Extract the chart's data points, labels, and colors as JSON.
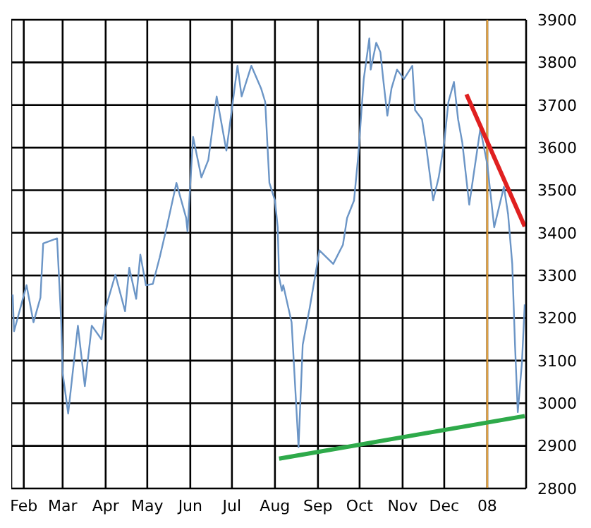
{
  "chart_data": {
    "type": "line",
    "grid": true,
    "legend": false,
    "marker": "none",
    "line_style": "solid",
    "xlim": [
      "2007-01-23",
      "2008-01-29"
    ],
    "xticks": [
      {
        "value": "2007-02-01",
        "label": "Feb"
      },
      {
        "value": "2007-03-01",
        "label": "Mar"
      },
      {
        "value": "2007-04-01",
        "label": "Apr"
      },
      {
        "value": "2007-05-01",
        "label": "May"
      },
      {
        "value": "2007-06-01",
        "label": "Jun"
      },
      {
        "value": "2007-07-01",
        "label": "Jul"
      },
      {
        "value": "2007-08-01",
        "label": "Aug"
      },
      {
        "value": "2007-09-01",
        "label": "Sep"
      },
      {
        "value": "2007-10-01",
        "label": "Oct"
      },
      {
        "value": "2007-11-01",
        "label": "Nov"
      },
      {
        "value": "2007-12-01",
        "label": "Dec"
      },
      {
        "value": "2008-01-01",
        "label": "08"
      }
    ],
    "ylim": [
      2800,
      3900
    ],
    "yticks": [
      2800,
      2900,
      3000,
      3100,
      3200,
      3300,
      3400,
      3500,
      3600,
      3700,
      3800,
      3900
    ],
    "ref_lines": [
      {
        "axis": "x",
        "value": "2008-01-01",
        "label": null,
        "color": "#e0a040"
      }
    ],
    "series": [
      {
        "color": "#6b95c6",
        "x": [
          "2007-01-24",
          "2007-01-25",
          "2007-02-03",
          "2007-02-08",
          "2007-02-13",
          "2007-02-15",
          "2007-02-25",
          "2007-02-28",
          "2007-03-01",
          "2007-03-05",
          "2007-03-12",
          "2007-03-17",
          "2007-03-22",
          "2007-03-29",
          "2007-04-01",
          "2007-04-08",
          "2007-04-15",
          "2007-04-18",
          "2007-04-23",
          "2007-04-26",
          "2007-04-30",
          "2007-05-05",
          "2007-05-10",
          "2007-05-15",
          "2007-05-22",
          "2007-05-29",
          "2007-05-30",
          "2007-06-03",
          "2007-06-09",
          "2007-06-14",
          "2007-06-20",
          "2007-06-27",
          "2007-06-30",
          "2007-07-05",
          "2007-07-08",
          "2007-07-15",
          "2007-07-22",
          "2007-07-25",
          "2007-07-28",
          "2007-08-01",
          "2007-08-03",
          "2007-08-04",
          "2007-08-06",
          "2007-08-07",
          "2007-08-13",
          "2007-08-18",
          "2007-08-21",
          "2007-08-26",
          "2007-08-31",
          "2007-09-02",
          "2007-09-12",
          "2007-09-19",
          "2007-09-22",
          "2007-09-27",
          "2007-09-30",
          "2007-10-04",
          "2007-10-08",
          "2007-10-09",
          "2007-10-13",
          "2007-10-16",
          "2007-10-18",
          "2007-10-21",
          "2007-10-24",
          "2007-10-28",
          "2007-11-02",
          "2007-11-08",
          "2007-11-10",
          "2007-11-15",
          "2007-11-18",
          "2007-11-23",
          "2007-11-27",
          "2007-12-01",
          "2007-12-04",
          "2007-12-08",
          "2007-12-11",
          "2007-12-14",
          "2007-12-19",
          "2007-12-27",
          "2008-01-01",
          "2008-01-06",
          "2008-01-13",
          "2008-01-16",
          "2008-01-19",
          "2008-01-21",
          "2008-01-23",
          "2008-01-26",
          "2008-01-28"
        ],
        "values": [
          3255,
          3169,
          3277,
          3190,
          3248,
          3375,
          3387,
          3190,
          3071,
          2976,
          3182,
          3040,
          3182,
          3150,
          3223,
          3302,
          3216,
          3318,
          3245,
          3349,
          3277,
          3280,
          3343,
          3413,
          3517,
          3435,
          3403,
          3625,
          3530,
          3571,
          3720,
          3593,
          3666,
          3792,
          3720,
          3792,
          3739,
          3707,
          3517,
          3476,
          3413,
          3296,
          3264,
          3277,
          3190,
          2897,
          3137,
          3223,
          3318,
          3359,
          3327,
          3372,
          3435,
          3476,
          3580,
          3761,
          3856,
          3783,
          3846,
          3824,
          3761,
          3675,
          3739,
          3783,
          3761,
          3792,
          3688,
          3666,
          3603,
          3476,
          3530,
          3612,
          3707,
          3754,
          3666,
          3612,
          3466,
          3644,
          3561,
          3413,
          3508,
          3444,
          3327,
          3137,
          2979,
          3096,
          3232
        ]
      },
      {
        "color": "#e02020",
        "x": [
          "2007-12-17",
          "2008-01-28"
        ],
        "values": [
          3725,
          3415
        ]
      },
      {
        "color": "#2eaa4a",
        "x": [
          "2007-08-04",
          "2008-01-28"
        ],
        "values": [
          2870,
          2970
        ]
      }
    ]
  }
}
